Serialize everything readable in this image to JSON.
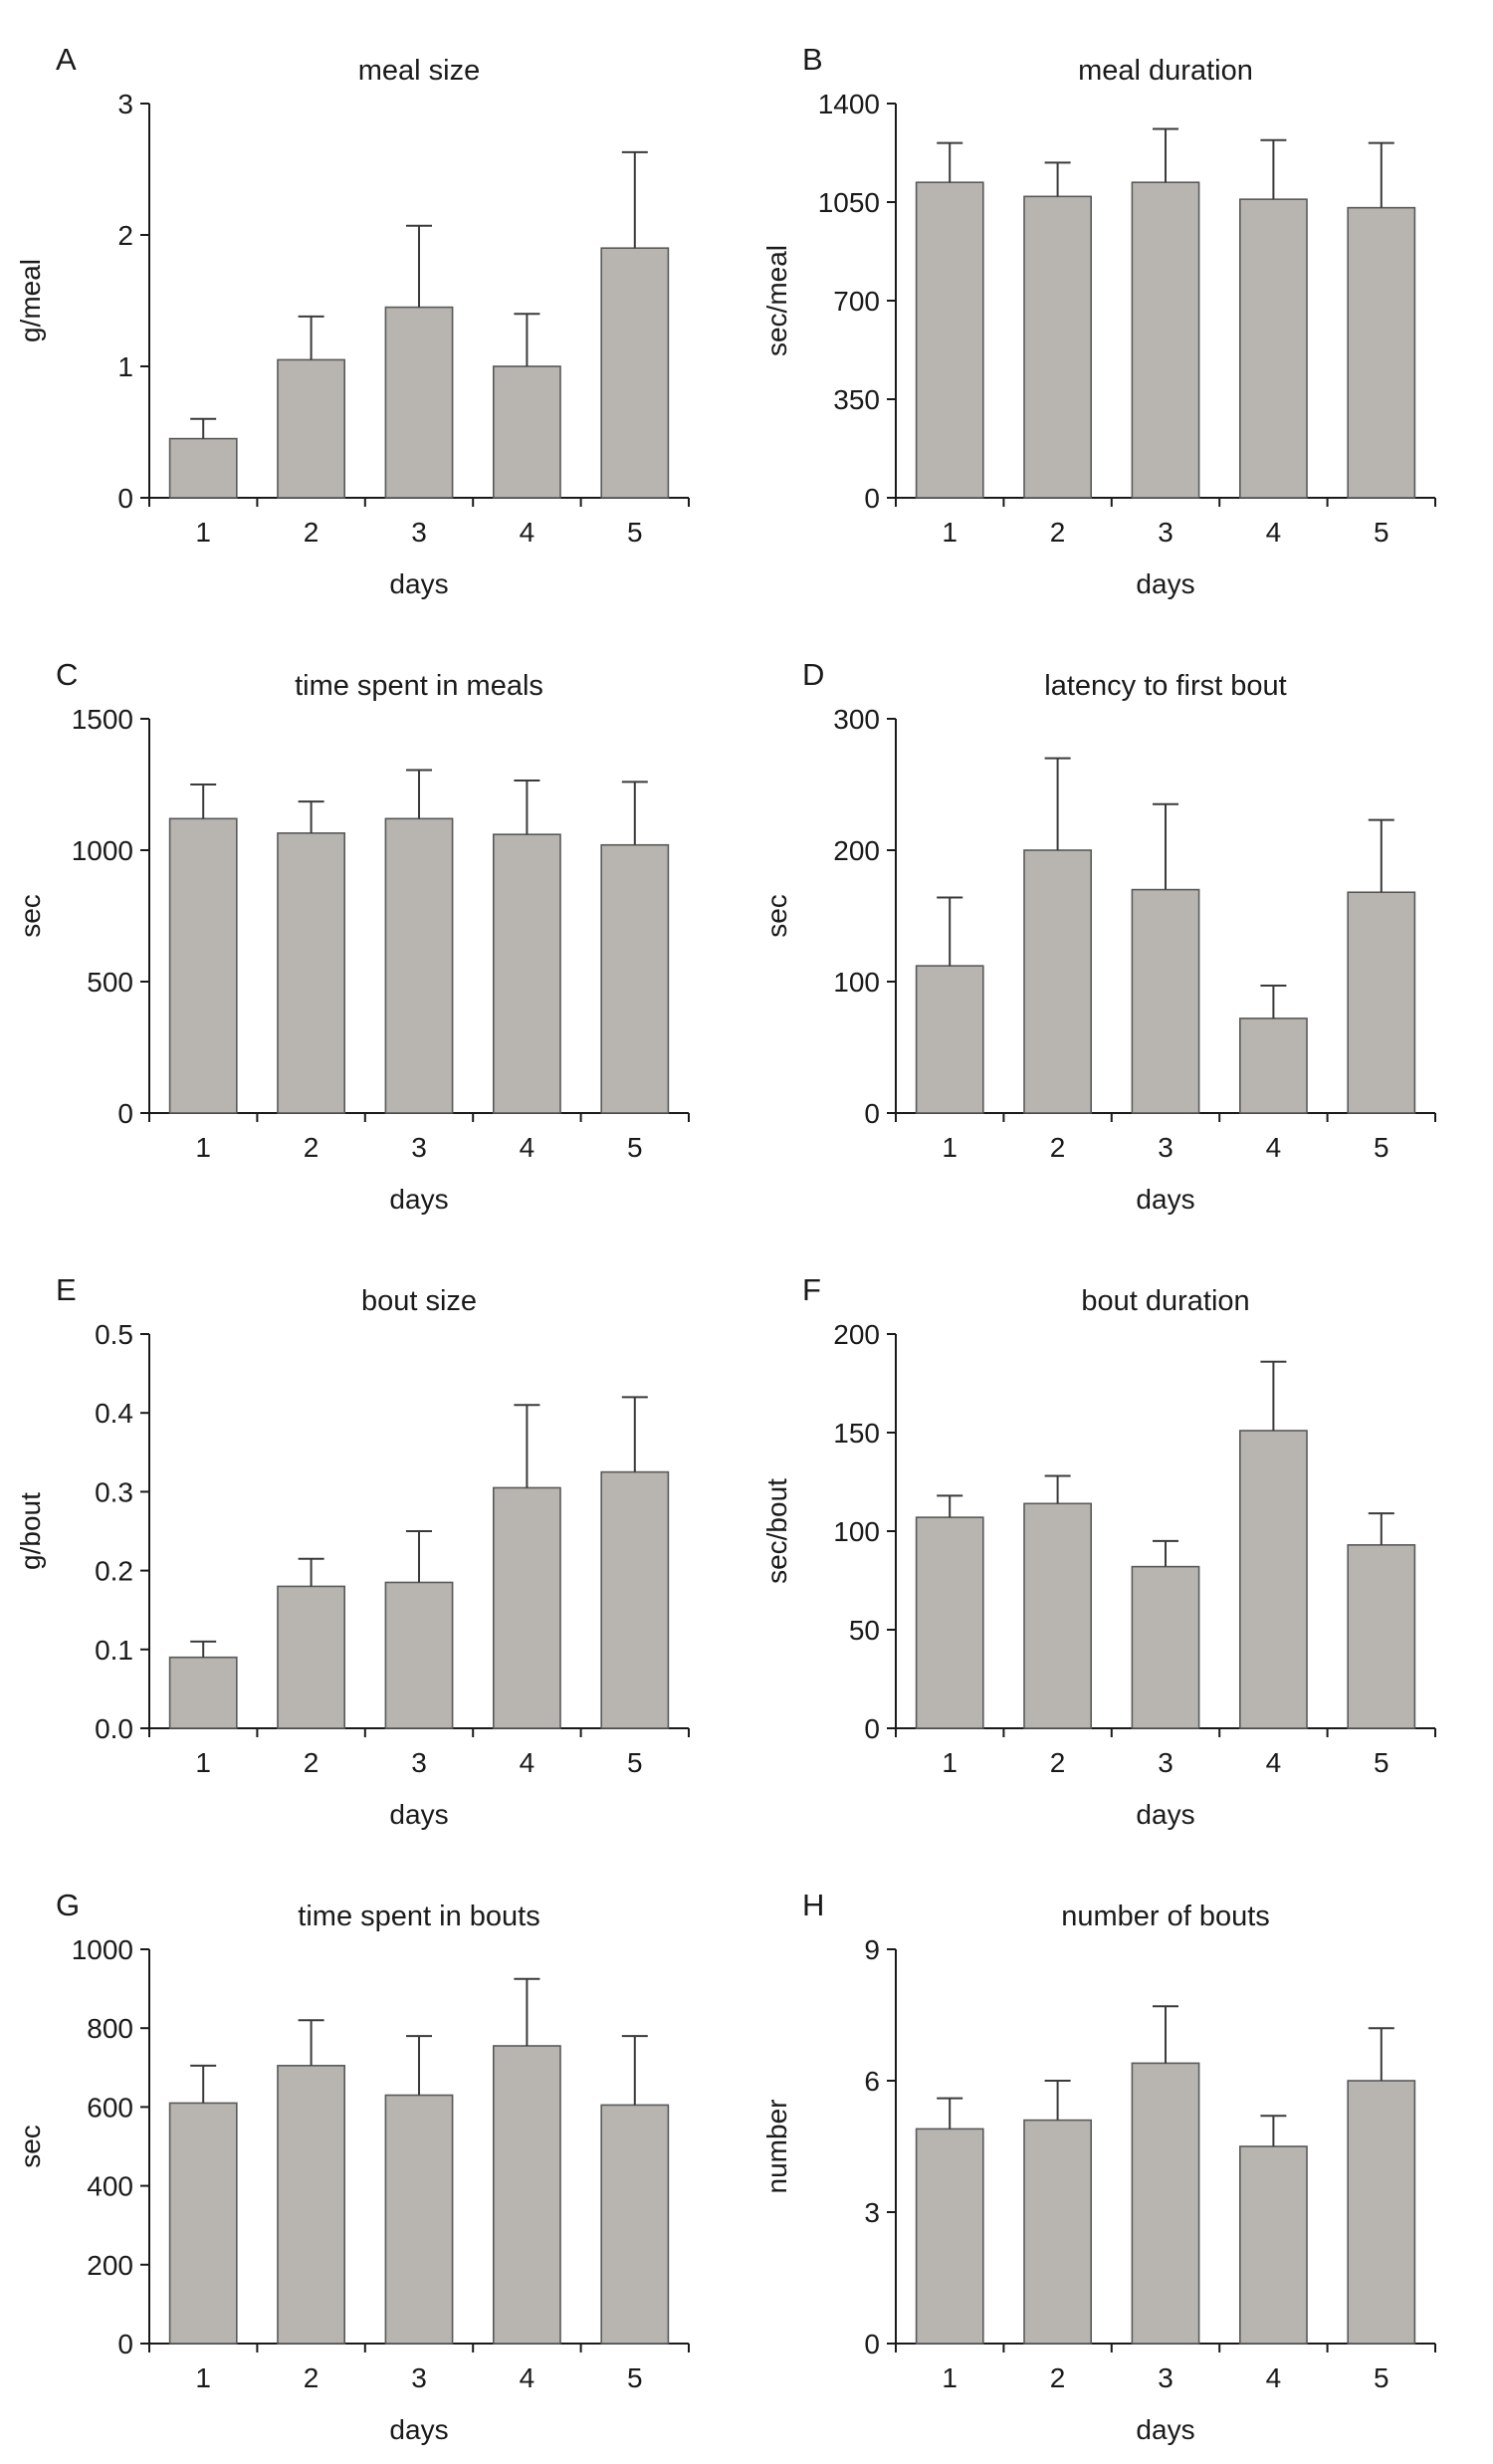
{
  "figure": {
    "background": "#ffffff",
    "bar_fill": "#b8b5b0",
    "bar_stroke": "#58595b",
    "axis_color": "#1a1a1a",
    "error_color": "#3a3a3a",
    "text_color": "#1a1a1a"
  },
  "chart_data": [
    {
      "type": "bar",
      "panel": "A",
      "title": "meal size",
      "ylabel": "g/meal",
      "xlabel": "days",
      "categories": [
        "1",
        "2",
        "3",
        "4",
        "5"
      ],
      "values": [
        0.45,
        1.05,
        1.45,
        1.0,
        1.9
      ],
      "errors": [
        0.15,
        0.33,
        0.62,
        0.4,
        0.73
      ],
      "ylim": [
        0,
        3
      ],
      "yticks": [
        0,
        1,
        2,
        3
      ],
      "ytick_labels": [
        "0",
        "1",
        "2",
        "3"
      ],
      "grid": false,
      "legend": "none"
    },
    {
      "type": "bar",
      "panel": "B",
      "title": "meal duration",
      "ylabel": "sec/meal",
      "xlabel": "days",
      "categories": [
        "1",
        "2",
        "3",
        "4",
        "5"
      ],
      "values": [
        1120,
        1070,
        1120,
        1060,
        1030
      ],
      "errors": [
        140,
        120,
        190,
        210,
        230
      ],
      "ylim": [
        0,
        1400
      ],
      "yticks": [
        0,
        350,
        700,
        1050,
        1400
      ],
      "ytick_labels": [
        "0",
        "350",
        "700",
        "1050",
        "1400"
      ],
      "grid": false,
      "legend": "none"
    },
    {
      "type": "bar",
      "panel": "C",
      "title": "time spent in meals",
      "ylabel": "sec",
      "xlabel": "days",
      "categories": [
        "1",
        "2",
        "3",
        "4",
        "5"
      ],
      "values": [
        1120,
        1065,
        1120,
        1060,
        1020
      ],
      "errors": [
        130,
        120,
        185,
        205,
        240
      ],
      "ylim": [
        0,
        1500
      ],
      "yticks": [
        0,
        500,
        1000,
        1500
      ],
      "ytick_labels": [
        "0",
        "500",
        "1000",
        "1500"
      ],
      "grid": false,
      "legend": "none"
    },
    {
      "type": "bar",
      "panel": "D",
      "title": "latency to first bout",
      "ylabel": "sec",
      "xlabel": "days",
      "categories": [
        "1",
        "2",
        "3",
        "4",
        "5"
      ],
      "values": [
        112,
        200,
        170,
        72,
        168
      ],
      "errors": [
        52,
        70,
        65,
        25,
        55
      ],
      "ylim": [
        0,
        300
      ],
      "yticks": [
        0,
        100,
        200,
        300
      ],
      "ytick_labels": [
        "0",
        "100",
        "200",
        "300"
      ],
      "grid": false,
      "legend": "none"
    },
    {
      "type": "bar",
      "panel": "E",
      "title": "bout size",
      "ylabel": "g/bout",
      "xlabel": "days",
      "categories": [
        "1",
        "2",
        "3",
        "4",
        "5"
      ],
      "values": [
        0.09,
        0.18,
        0.185,
        0.305,
        0.325
      ],
      "errors": [
        0.02,
        0.035,
        0.065,
        0.105,
        0.095
      ],
      "ylim": [
        0,
        0.5
      ],
      "yticks": [
        0,
        0.1,
        0.2,
        0.3,
        0.4,
        0.5
      ],
      "ytick_labels": [
        "0.0",
        "0.1",
        "0.2",
        "0.3",
        "0.4",
        "0.5"
      ],
      "grid": false,
      "legend": "none"
    },
    {
      "type": "bar",
      "panel": "F",
      "title": "bout duration",
      "ylabel": "sec/bout",
      "xlabel": "days",
      "categories": [
        "1",
        "2",
        "3",
        "4",
        "5"
      ],
      "values": [
        107,
        114,
        82,
        151,
        93
      ],
      "errors": [
        11,
        14,
        13,
        35,
        16
      ],
      "ylim": [
        0,
        200
      ],
      "yticks": [
        0,
        50,
        100,
        150,
        200
      ],
      "ytick_labels": [
        "0",
        "50",
        "100",
        "150",
        "200"
      ],
      "grid": false,
      "legend": "none"
    },
    {
      "type": "bar",
      "panel": "G",
      "title": "time spent in bouts",
      "ylabel": "sec",
      "xlabel": "days",
      "categories": [
        "1",
        "2",
        "3",
        "4",
        "5"
      ],
      "values": [
        610,
        705,
        630,
        755,
        605
      ],
      "errors": [
        95,
        115,
        150,
        170,
        175
      ],
      "ylim": [
        0,
        1000
      ],
      "yticks": [
        0,
        200,
        400,
        600,
        800,
        1000
      ],
      "ytick_labels": [
        "0",
        "200",
        "400",
        "600",
        "800",
        "1000"
      ],
      "grid": false,
      "legend": "none"
    },
    {
      "type": "bar",
      "panel": "H",
      "title": "number of bouts",
      "ylabel": "number",
      "xlabel": "days",
      "categories": [
        "1",
        "2",
        "3",
        "4",
        "5"
      ],
      "values": [
        4.9,
        5.1,
        6.4,
        4.5,
        6.0
      ],
      "errors": [
        0.7,
        0.9,
        1.3,
        0.7,
        1.2
      ],
      "ylim": [
        0,
        9
      ],
      "yticks": [
        0,
        3,
        6,
        9
      ],
      "ytick_labels": [
        "0",
        "3",
        "6",
        "9"
      ],
      "grid": false,
      "legend": "none"
    }
  ]
}
